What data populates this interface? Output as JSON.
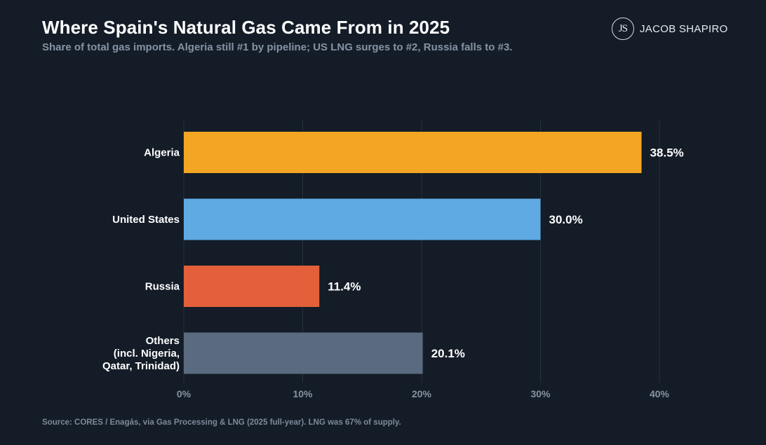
{
  "header": {
    "title": "Where Spain's Natural Gas Came From in 2025",
    "subtitle": "Share of total gas imports. Algeria still #1 by pipeline; US LNG surges to #2, Russia falls to #3."
  },
  "brand": {
    "monogram": "JS",
    "name": "JACOB SHAPIRO"
  },
  "footer": {
    "source": "Source: CORES / Enagás, via Gas Processing & LNG (2025 full-year). LNG was 67% of supply."
  },
  "chart_data": {
    "type": "bar",
    "orientation": "horizontal",
    "title": "Where Spain's Natural Gas Came From in 2025",
    "subtitle": "Share of total gas imports. Algeria still #1 by pipeline; US LNG surges to #2, Russia falls to #3.",
    "categories": [
      [
        "Algeria"
      ],
      [
        "United States"
      ],
      [
        "Russia"
      ],
      [
        "Others",
        "(incl. Nigeria,",
        "Qatar, Trinidad)"
      ]
    ],
    "values": [
      38.5,
      30.0,
      11.4,
      20.1
    ],
    "value_labels": [
      "38.5%",
      "30.0%",
      "11.4%",
      "20.1%"
    ],
    "colors": [
      "#f3a623",
      "#5faae3",
      "#e3603b",
      "#5a6a7f"
    ],
    "xlim": [
      0,
      40
    ],
    "xticks": [
      0,
      10,
      20,
      30,
      40
    ],
    "xtick_labels": [
      "0%",
      "10%",
      "20%",
      "30%",
      "40%"
    ],
    "grid": "vertical",
    "legend": "none"
  }
}
